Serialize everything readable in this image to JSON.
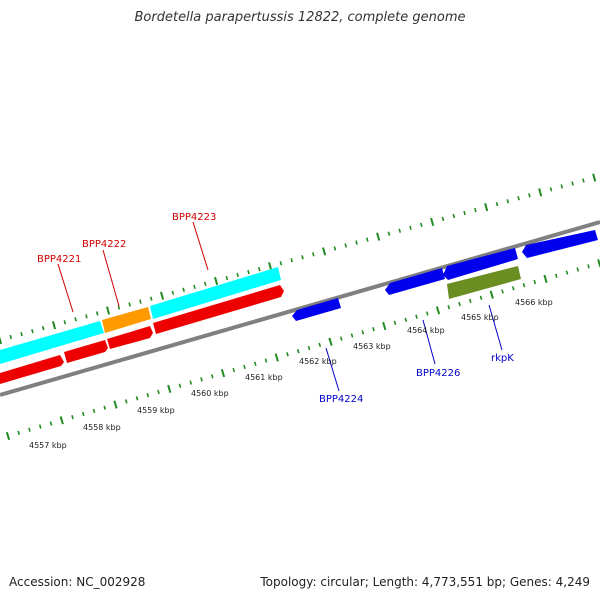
{
  "title": "Bordetella parapertussis 12822, complete genome",
  "footer": {
    "accession": "Accession: NC_002928",
    "summary": "Topology: circular; Length: 4,773,551 bp; Genes: 4,249"
  },
  "colors": {
    "backbone": "#808080",
    "tick": "#228B22",
    "forward_cds": "#00FFFF",
    "orange_feature": "#FF9900",
    "reverse_cds": "#FF0000",
    "blue_cds": "#0000EE",
    "green_feature": "#6B8E23",
    "red_label": "#D00000",
    "blue_label": "#0000CC"
  },
  "scale_labels": [
    "4557 kbp",
    "4558 kbp",
    "4559 kbp",
    "4560 kbp",
    "4561 kbp",
    "4562 kbp",
    "4563 kbp",
    "4564 kbp",
    "4565 kbp",
    "4566 kbp"
  ],
  "gene_labels": {
    "BPP4221": "BPP4221",
    "BPP4222": "BPP4222",
    "BPP4223": "BPP4223",
    "BPP4224": "BPP4224",
    "BPP4226": "BPP4226",
    "rkpK": "rkpK"
  }
}
